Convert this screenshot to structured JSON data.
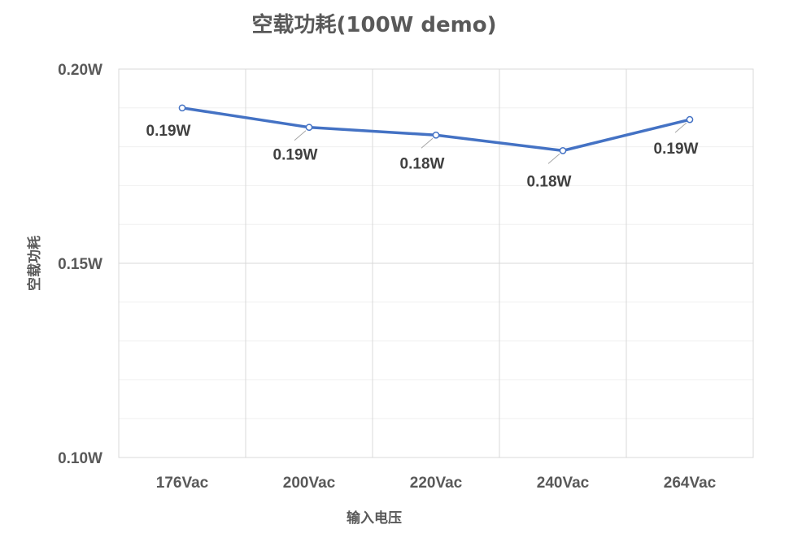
{
  "chart_data": {
    "type": "line",
    "title": "空载功耗(100W demo)",
    "xlabel": "输入电压",
    "ylabel": "空载功耗",
    "categories": [
      "176Vac",
      "200Vac",
      "220Vac",
      "240Vac",
      "264Vac"
    ],
    "series": [
      {
        "values": [
          0.19,
          0.185,
          0.183,
          0.179,
          0.187
        ],
        "labels": [
          "0.19W",
          "0.19W",
          "0.18W",
          "0.18W",
          "0.19W"
        ],
        "color": "#4472c4"
      }
    ],
    "ylim": [
      0.1,
      0.2
    ],
    "yticks": [
      0.1,
      0.15,
      0.2
    ],
    "ytick_labels": [
      "0.10W",
      "0.15W",
      "0.20W"
    ],
    "grid": "major and minor",
    "legend": "none"
  }
}
